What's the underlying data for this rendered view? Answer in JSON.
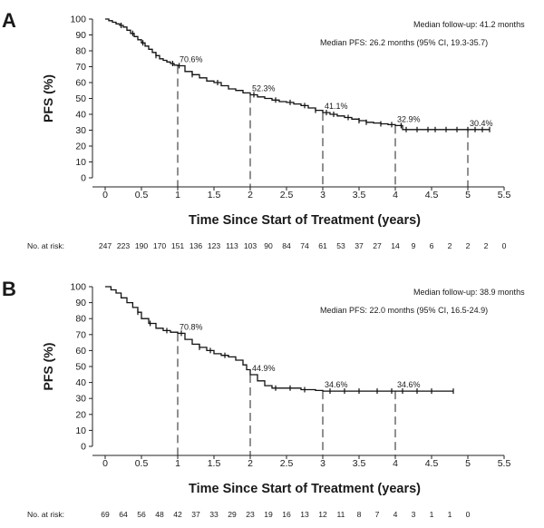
{
  "chart_data": [
    {
      "type": "line",
      "panel_label": "A",
      "ylabel": "PFS (%)",
      "xlabel": "Time Since Start of Treatment (years)",
      "xlim": [
        0,
        5.5
      ],
      "ylim": [
        0,
        100
      ],
      "x_ticks": [
        "0",
        "0.5",
        "1",
        "1.5",
        "2",
        "2.5",
        "3",
        "3.5",
        "4",
        "4.5",
        "5",
        "5.5"
      ],
      "y_ticks": [
        "0",
        "10",
        "20",
        "30",
        "40",
        "50",
        "60",
        "70",
        "80",
        "90",
        "100"
      ],
      "annotations": [
        "Median follow-up: 41.2 months",
        "Median PFS: 26.2 months (95% CI, 19.3-35.7)"
      ],
      "landmarks": [
        {
          "x": 1,
          "y": 70.6,
          "label": "70.6%"
        },
        {
          "x": 2,
          "y": 52.3,
          "label": "52.3%"
        },
        {
          "x": 3,
          "y": 41.1,
          "label": "41.1%"
        },
        {
          "x": 4,
          "y": 32.9,
          "label": "32.9%"
        },
        {
          "x": 5,
          "y": 30.4,
          "label": "30.4%"
        }
      ],
      "series": [
        {
          "x": [
            0,
            0.05,
            0.1,
            0.15,
            0.2,
            0.25,
            0.3,
            0.35,
            0.4,
            0.45,
            0.5,
            0.55,
            0.6,
            0.65,
            0.7,
            0.75,
            0.8,
            0.85,
            0.9,
            0.95,
            1.0,
            1.1,
            1.2,
            1.3,
            1.4,
            1.5,
            1.6,
            1.7,
            1.8,
            1.9,
            2.0,
            2.1,
            2.2,
            2.3,
            2.4,
            2.5,
            2.6,
            2.7,
            2.8,
            2.9,
            3.0,
            3.1,
            3.2,
            3.3,
            3.4,
            3.5,
            3.6,
            3.7,
            3.8,
            3.9,
            4.0,
            4.1,
            5.3
          ],
          "values": [
            100,
            99,
            98,
            97,
            96,
            95,
            93,
            91,
            89,
            87,
            85,
            83,
            81,
            79,
            77,
            75,
            74,
            73,
            72,
            71,
            70.6,
            67,
            65,
            63,
            61,
            60,
            58,
            56,
            55,
            53.5,
            52.3,
            51,
            50,
            49,
            48,
            47.5,
            46.5,
            45.5,
            44,
            42.5,
            41.1,
            40,
            39,
            38,
            37,
            36,
            35,
            34.5,
            34,
            33.5,
            32.9,
            30.4,
            30.4
          ]
        }
      ],
      "censor_x": [
        0.22,
        0.38,
        0.52,
        0.7,
        0.93,
        1.02,
        1.2,
        1.55,
        2.05,
        2.35,
        2.55,
        2.75,
        2.9,
        3.05,
        3.15,
        3.35,
        3.5,
        3.6,
        3.8,
        3.95,
        4.08,
        4.15,
        4.3,
        4.45,
        4.55,
        4.7,
        4.85,
        5.0,
        5.1,
        5.2,
        5.3
      ],
      "risk_table": {
        "label": "No. at risk:",
        "values": [
          "247",
          "223",
          "190",
          "170",
          "151",
          "136",
          "123",
          "113",
          "103",
          "90",
          "84",
          "74",
          "61",
          "53",
          "37",
          "27",
          "14",
          "9",
          "6",
          "2",
          "2",
          "2",
          "0"
        ]
      }
    },
    {
      "type": "line",
      "panel_label": "B",
      "ylabel": "PFS (%)",
      "xlabel": "Time Since Start of Treatment (years)",
      "xlim": [
        0,
        5.5
      ],
      "ylim": [
        0,
        100
      ],
      "x_ticks": [
        "0",
        "0.5",
        "1",
        "1.5",
        "2",
        "2.5",
        "3",
        "3.5",
        "4",
        "4.5",
        "5",
        "5.5"
      ],
      "y_ticks": [
        "0",
        "10",
        "20",
        "30",
        "40",
        "50",
        "60",
        "70",
        "80",
        "90",
        "100"
      ],
      "annotations": [
        "Median follow-up: 38.9 months",
        "Median PFS: 22.0 months (95% CI, 16.5-24.9)"
      ],
      "landmarks": [
        {
          "x": 1,
          "y": 70.8,
          "label": "70.8%"
        },
        {
          "x": 2,
          "y": 44.9,
          "label": "44.9%"
        },
        {
          "x": 3,
          "y": 34.6,
          "label": "34.6%"
        },
        {
          "x": 4,
          "y": 34.6,
          "label": "34.6%"
        }
      ],
      "series": [
        {
          "x": [
            0,
            0.08,
            0.15,
            0.22,
            0.3,
            0.38,
            0.45,
            0.5,
            0.6,
            0.7,
            0.8,
            0.9,
            1.0,
            1.1,
            1.2,
            1.3,
            1.4,
            1.5,
            1.6,
            1.7,
            1.8,
            1.9,
            1.95,
            2.0,
            2.1,
            2.2,
            2.3,
            2.5,
            2.7,
            2.9,
            3.0,
            4.8
          ],
          "values": [
            100,
            98,
            96,
            93,
            90,
            87,
            84,
            80,
            77,
            74,
            72.5,
            71.5,
            70.8,
            67,
            64,
            62,
            60,
            58,
            57,
            56,
            54,
            51,
            48,
            44.9,
            41,
            38,
            36.5,
            36.5,
            35.5,
            35,
            34.6,
            34.6
          ]
        }
      ],
      "censor_x": [
        0.45,
        0.62,
        0.85,
        1.05,
        1.3,
        1.45,
        1.65,
        2.35,
        2.55,
        2.75,
        3.1,
        3.3,
        3.5,
        3.75,
        3.95,
        4.1,
        4.3,
        4.5,
        4.8
      ],
      "risk_table": {
        "label": "No. at risk:",
        "values": [
          "69",
          "64",
          "56",
          "48",
          "42",
          "37",
          "33",
          "29",
          "23",
          "19",
          "16",
          "13",
          "12",
          "11",
          "8",
          "7",
          "4",
          "3",
          "1",
          "1",
          "0"
        ]
      }
    }
  ]
}
